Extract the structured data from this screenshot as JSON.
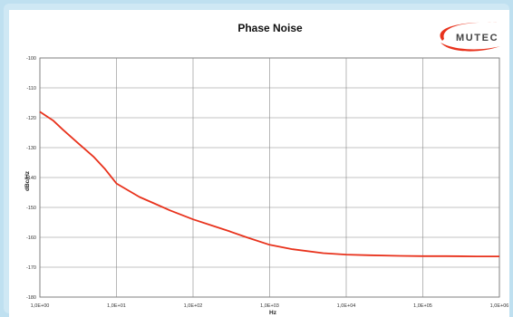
{
  "chart_data": {
    "type": "line",
    "title": "Phase Noise",
    "xlabel": "Hz",
    "ylabel": "dBc/Hz",
    "x_scale": "log",
    "xlim": [
      1,
      1000000
    ],
    "ylim": [
      -180,
      -100
    ],
    "grid": true,
    "x_ticks": [
      "1,0E+00",
      "1,0E+01",
      "1,0E+02",
      "1,0E+03",
      "1,0E+04",
      "1,0E+05",
      "1,0E+06"
    ],
    "y_ticks": [
      "-100",
      "-110",
      "-120",
      "-130",
      "-140",
      "-150",
      "-160",
      "-170",
      "-180"
    ],
    "series": [
      {
        "color": "#e8321c",
        "x": [
          1,
          1.5,
          2,
          3,
          5,
          7,
          10,
          20,
          30,
          50,
          100,
          200,
          300,
          500,
          1000,
          2000,
          5000,
          10000,
          20000,
          50000,
          100000,
          200000,
          500000,
          1000000
        ],
        "y": [
          -118,
          -121,
          -124,
          -128,
          -133,
          -137,
          -142,
          -146.5,
          -148.5,
          -151,
          -154,
          -156.5,
          -158,
          -160,
          -162.5,
          -164,
          -165.3,
          -165.8,
          -166,
          -166.2,
          -166.3,
          -166.3,
          -166.4,
          -166.4
        ]
      }
    ]
  },
  "logo": {
    "text": "MUTEC"
  }
}
